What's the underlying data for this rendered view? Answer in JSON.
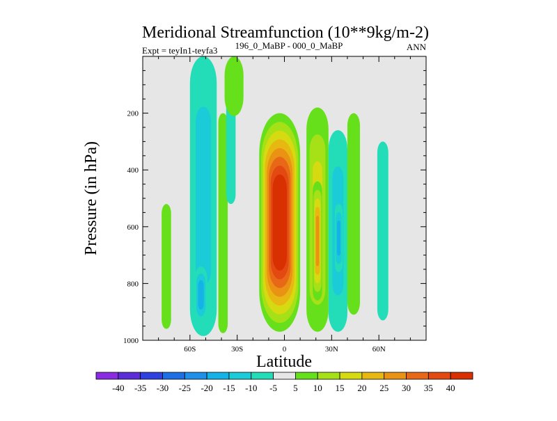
{
  "chart_data": {
    "type": "heatmap",
    "title": "Meridional Streamfunction (10**9kg/m-2)",
    "subtitle_left": "Expt = teyIn1-teyfa3",
    "subtitle_center": "196_0_MaBP - 000_0_MaBP",
    "subtitle_right": "ANN",
    "xlabel": "Latitude",
    "ylabel": "Pressure (in hPa)",
    "xlim": [
      -90,
      90
    ],
    "ylim": [
      1000,
      0
    ],
    "x_ticks": [
      {
        "value": -60,
        "label": "60S"
      },
      {
        "value": -30,
        "label": "30S"
      },
      {
        "value": 0,
        "label": "0"
      },
      {
        "value": 30,
        "label": "30N"
      },
      {
        "value": 60,
        "label": "60N"
      }
    ],
    "y_ticks": [
      {
        "value": 200,
        "label": "200"
      },
      {
        "value": 400,
        "label": "400"
      },
      {
        "value": 600,
        "label": "600"
      },
      {
        "value": 800,
        "label": "800"
      },
      {
        "value": 1000,
        "label": "1000"
      }
    ],
    "background_color": "#e6e6e6",
    "colorbar": {
      "levels": [
        -40,
        -35,
        -30,
        -25,
        -20,
        -15,
        -10,
        -5,
        5,
        10,
        15,
        20,
        25,
        30,
        35,
        40
      ],
      "colors": [
        "#8a2be2",
        "#5a2dd8",
        "#2f3fe0",
        "#1e6ee6",
        "#1e90ea",
        "#14b2e6",
        "#1ccbd8",
        "#22ddb8",
        "#e6e6e6",
        "#66e01a",
        "#a6e016",
        "#d6da10",
        "#e8b812",
        "#ea9214",
        "#e86818",
        "#e24a12",
        "#d83000"
      ]
    },
    "features": [
      {
        "name": "far-south-positive",
        "level": 5,
        "lat": [
          -78,
          -72
        ],
        "p": [
          520,
          960
        ]
      },
      {
        "name": "southern-cell-negative",
        "level": -10,
        "lat": [
          -60,
          -43
        ],
        "p": [
          0,
          985
        ]
      },
      {
        "name": "southern-cell-core",
        "level": -15,
        "lat": [
          -57,
          -49
        ],
        "p": [
          740,
          940
        ]
      },
      {
        "name": "southern-midlat-positive",
        "level": 5,
        "lat": [
          -42,
          -36
        ],
        "p": [
          200,
          975
        ]
      },
      {
        "name": "southern-subtropic-negative",
        "level": -5,
        "lat": [
          -37,
          -31
        ],
        "p": [
          140,
          520
        ]
      },
      {
        "name": "southern-upper-positive",
        "level": 5,
        "lat": [
          -38,
          -26
        ],
        "p": [
          0,
          210
        ]
      },
      {
        "name": "central-hadley-cell",
        "level": 45,
        "lat": [
          -16,
          10
        ],
        "p": [
          200,
          970
        ]
      },
      {
        "name": "northern-subtropic-positive",
        "level": 15,
        "lat": [
          14,
          28
        ],
        "p": [
          180,
          970
        ]
      },
      {
        "name": "northern-subtropic-core",
        "level": 25,
        "lat": [
          18,
          24
        ],
        "p": [
          440,
          860
        ]
      },
      {
        "name": "northern-midlat-negative",
        "level": -10,
        "lat": [
          28,
          40
        ],
        "p": [
          260,
          970
        ]
      },
      {
        "name": "northern-midlat-core",
        "level": -15,
        "lat": [
          32,
          37
        ],
        "p": [
          520,
          760
        ]
      },
      {
        "name": "northern-highlat-positive",
        "level": 5,
        "lat": [
          40,
          48
        ],
        "p": [
          200,
          910
        ]
      },
      {
        "name": "far-north-negative",
        "level": -5,
        "lat": [
          59,
          66
        ],
        "p": [
          300,
          930
        ]
      }
    ]
  }
}
